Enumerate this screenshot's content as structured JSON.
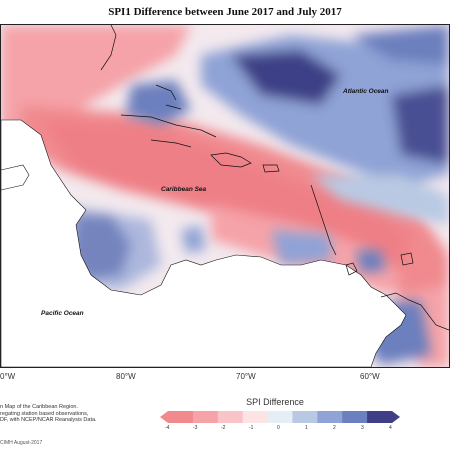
{
  "title": "SPI1 Difference between June 2017 and July 2017",
  "labels": {
    "atlantic": "Atlantic Ocean",
    "caribbean": "Caribbean Sea",
    "pacific": "Pacific Ocean"
  },
  "longitudes": [
    "0°W",
    "80°W",
    "70°W",
    "60°W"
  ],
  "notes": [
    "n Map of the Caribbean Region.",
    "regating station based observations,",
    "DF, with NCEP/NCAR Reanalysis Data."
  ],
  "credit": "CIMH August-2017",
  "legend": {
    "title": "SPI Difference",
    "ticks": [
      "-4",
      "-3",
      "-2",
      "-1",
      "0",
      "1",
      "2",
      "3",
      "4"
    ],
    "colors": [
      "#f08a8f",
      "#f5a3a8",
      "#f9c4c7",
      "#fce3e4",
      "#e6eef5",
      "#b9c9e3",
      "#8fa3d6",
      "#6c7fbe",
      "#3e3f86"
    ]
  }
}
